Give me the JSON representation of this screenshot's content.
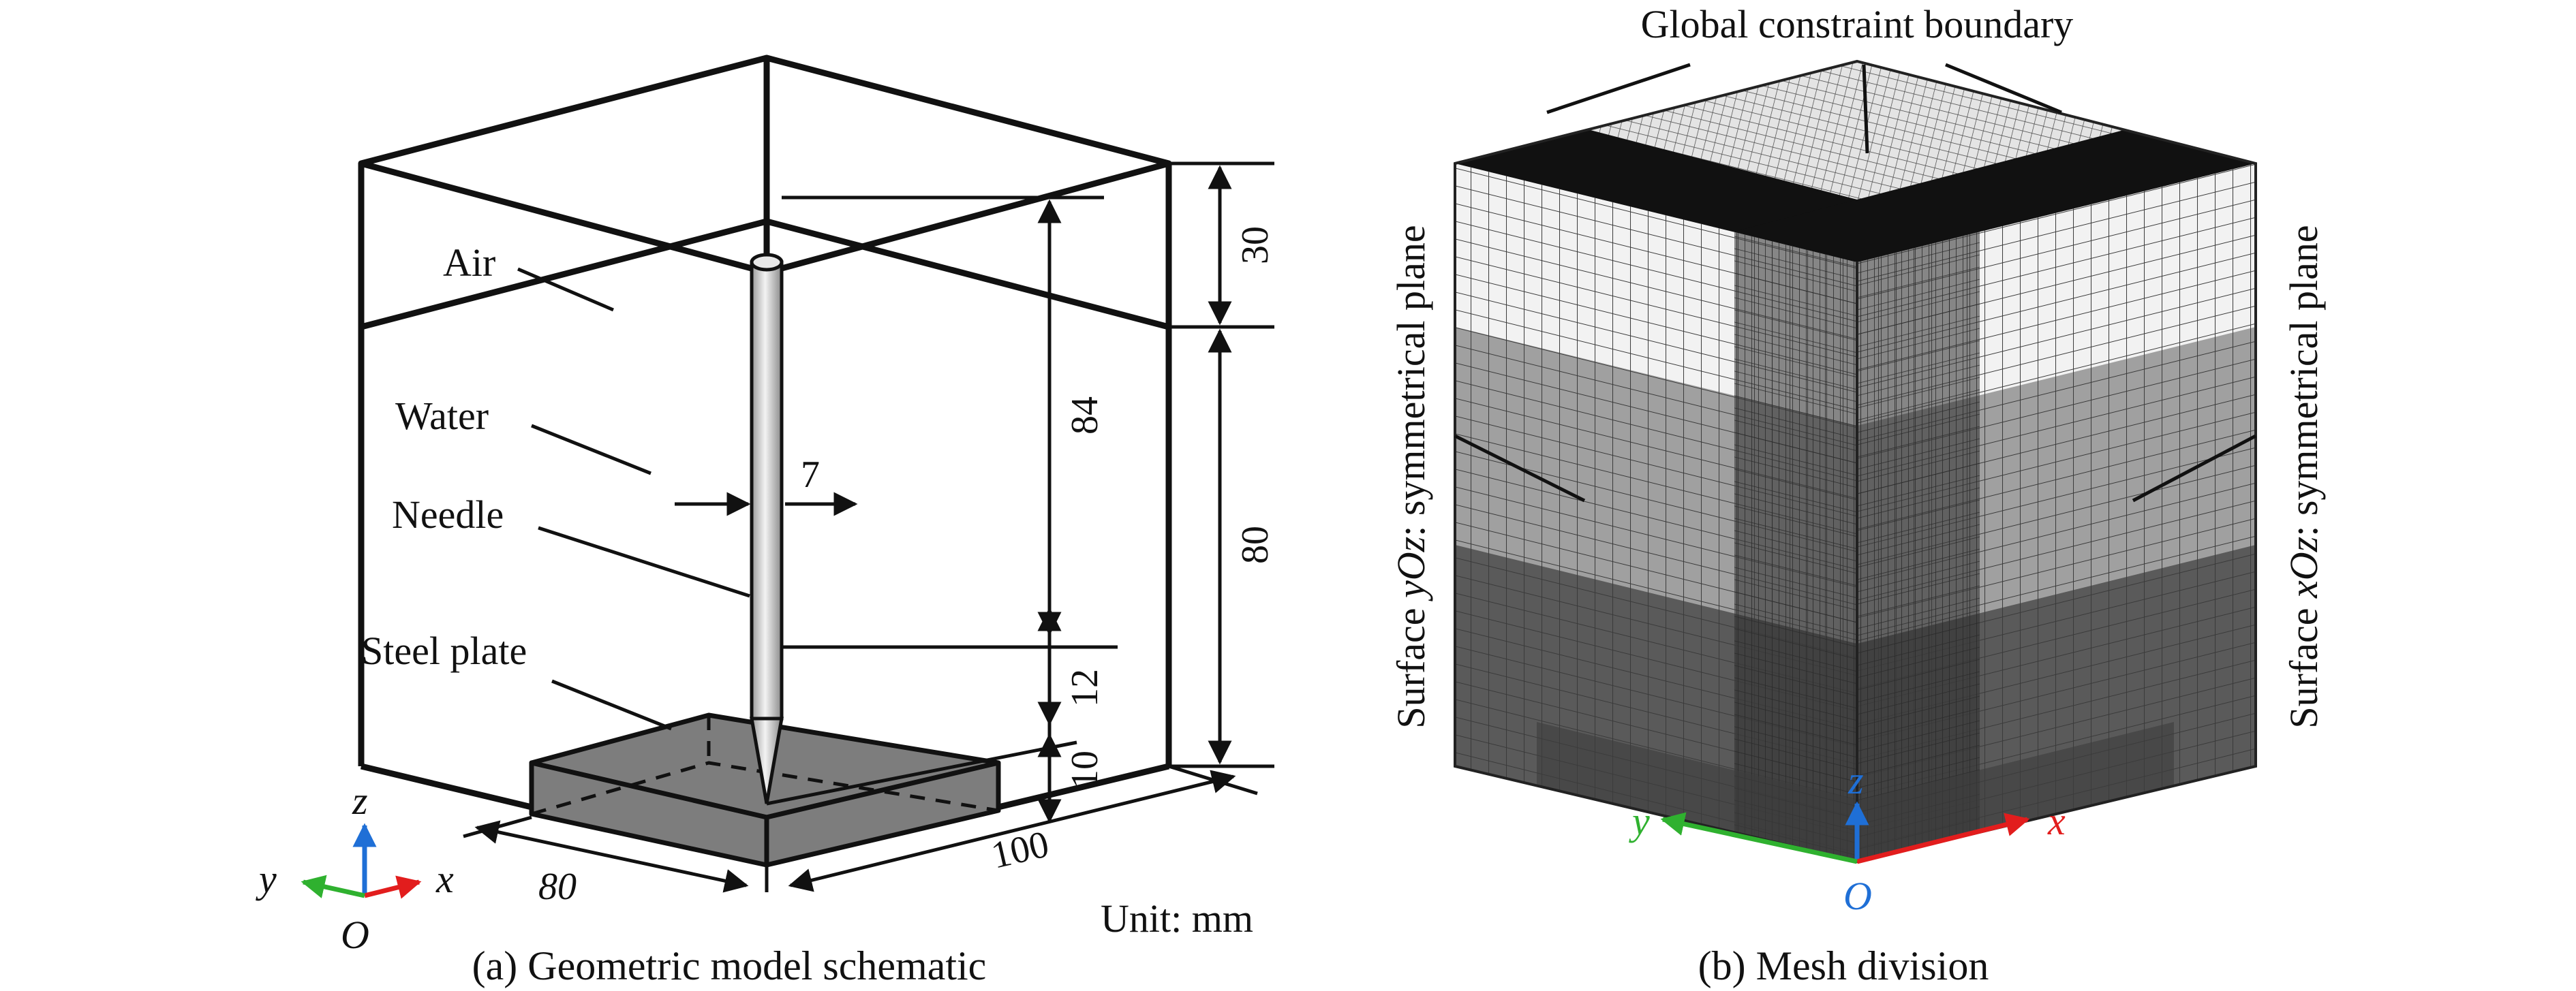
{
  "panel_a": {
    "caption": "(a) Geometric model schematic",
    "labels": {
      "air": "Air",
      "water": "Water",
      "needle": "Needle",
      "steel_plate": "Steel plate",
      "unit": "Unit: mm"
    },
    "dimensions": {
      "air_height": "30",
      "needle_height": "84",
      "water_height": "80",
      "tip_gap": "12",
      "plate_thickness": "10",
      "needle_diameter": "7",
      "depth": "80",
      "width": "100"
    },
    "axes": {
      "x": "x",
      "y": "y",
      "z": "z",
      "origin": "O"
    }
  },
  "panel_b": {
    "caption": "(b) Mesh division",
    "labels": {
      "top_boundary": "Global constraint boundary",
      "left_surface_prefix": "Surface ",
      "left_surface_italic": "yOz",
      "left_surface_suffix": ": symmetrical plane",
      "right_surface_prefix": "Surface ",
      "right_surface_italic": "xOz",
      "right_surface_suffix": ": symmetrical plane"
    },
    "axes": {
      "x": "x",
      "y": "y",
      "z": "z",
      "origin": "O"
    }
  },
  "colors": {
    "line": "#111111",
    "plate_fill": "#7d7d7d",
    "needle_fill": "#d4d4d4",
    "mesh_light": "#f2f2f2",
    "mesh_mid": "#a0a0a0",
    "mesh_dark": "#5a5a5a",
    "mesh_top": "#e4e4e4",
    "axis_x": "#e21d1d",
    "axis_y": "#2fb12f",
    "axis_z": "#1f6fd6"
  }
}
